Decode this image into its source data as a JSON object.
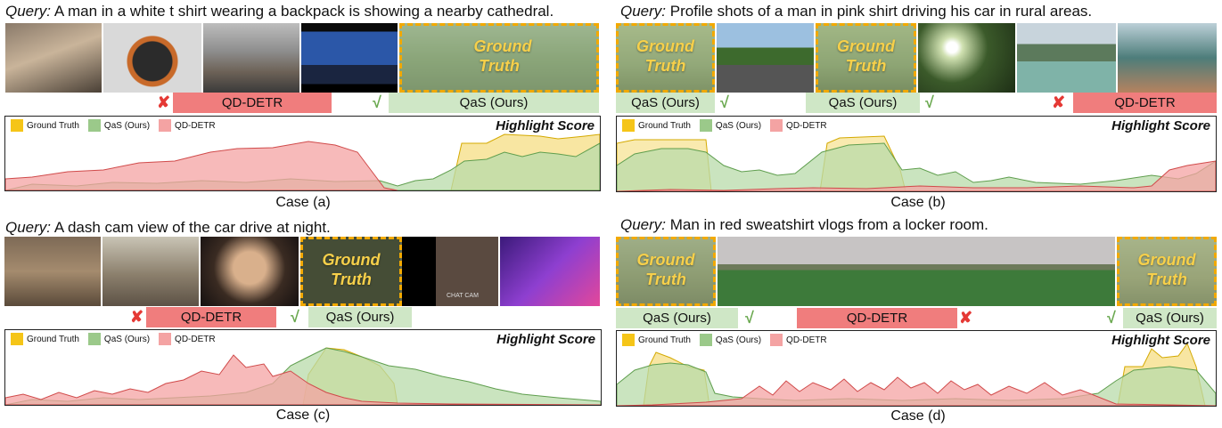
{
  "legend": {
    "gt": "Ground Truth",
    "qas": "QaS (Ours)",
    "qd": "QD-DETR"
  },
  "highlight_title": "Highlight Score",
  "gt_label_line1": "Ground",
  "gt_label_line2": "Truth",
  "colors": {
    "gt": "#f5c518",
    "qas": "#9bc98a",
    "qd": "#f4a3a3"
  },
  "cases": [
    {
      "query_prefix": "Query:",
      "query_text": "A man in a white t shirt wearing a backpack is showing a nearby cathedral.",
      "bar_labels": [
        "QD-DETR",
        "QaS (Ours)"
      ],
      "caption": "Case (a)"
    },
    {
      "query_prefix": "Query:",
      "query_text": "Profile shots of a man in pink shirt driving his car in rural areas.",
      "bar_labels": [
        "QaS (Ours)",
        "QaS (Ours)",
        "QD-DETR"
      ],
      "caption": "Case (b)"
    },
    {
      "query_prefix": "Query:",
      "query_text": "A dash cam view of the car drive at night.",
      "bar_labels": [
        "QD-DETR",
        "QaS (Ours)"
      ],
      "caption": "Case (c)",
      "watermark": "CHAT CAM"
    },
    {
      "query_prefix": "Query:",
      "query_text": "Man in red sweatshirt vlogs from a locker room.",
      "bar_labels": [
        "QaS (Ours)",
        "QD-DETR",
        "QaS (Ours)"
      ],
      "caption": "Case (d)"
    }
  ],
  "marks": {
    "cross": "✘",
    "check": "√"
  }
}
